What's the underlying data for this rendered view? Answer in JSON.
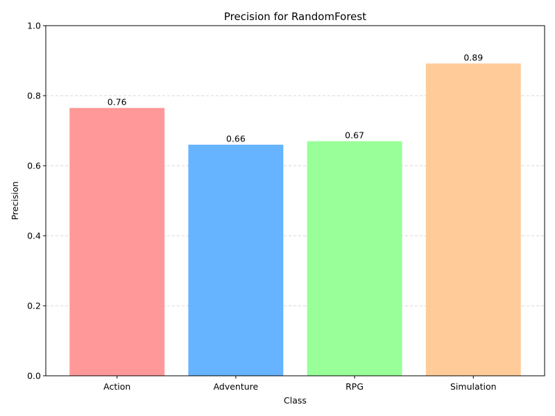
{
  "chart_data": {
    "type": "bar",
    "title": "Precision for RandomForest",
    "xlabel": "Class",
    "ylabel": "Precision",
    "categories": [
      "Action",
      "Adventure",
      "RPG",
      "Simulation"
    ],
    "values": [
      0.765,
      0.66,
      0.67,
      0.892
    ],
    "value_labels": [
      "0.76",
      "0.66",
      "0.67",
      "0.89"
    ],
    "colors": [
      "#ff9999",
      "#66b3ff",
      "#99ff99",
      "#ffcc99"
    ],
    "ylim": [
      0,
      1.0
    ],
    "yticks": [
      0.0,
      0.2,
      0.4,
      0.6,
      0.8,
      1.0
    ],
    "ytick_labels": [
      "0.0",
      "0.2",
      "0.4",
      "0.6",
      "0.8",
      "1.0"
    ],
    "grid": "y-dashed",
    "legend": "none"
  }
}
